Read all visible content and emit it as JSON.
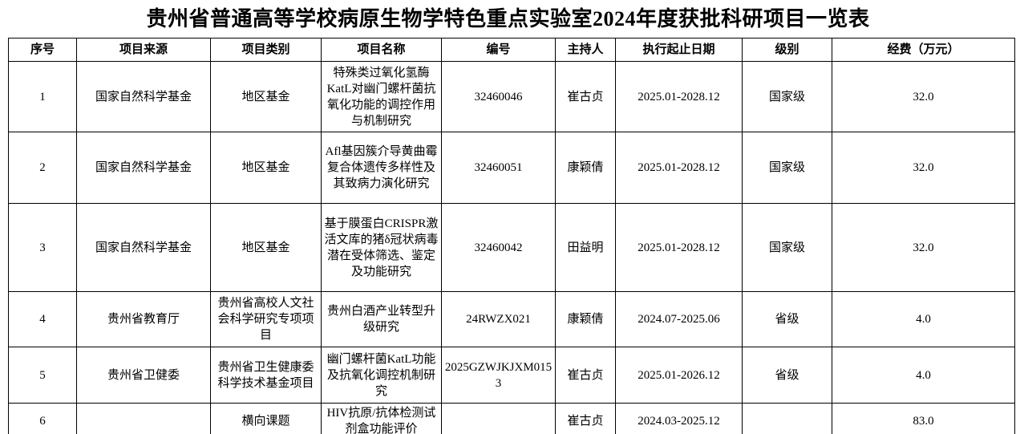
{
  "page": {
    "title": "贵州省普通高等学校病原生物学特色重点实验室2024年度获批科研项目一览表"
  },
  "table": {
    "headers": [
      "序号",
      "项目来源",
      "项目类别",
      "项目名称",
      "编号",
      "主持人",
      "执行起止日期",
      "级别",
      "经费（万元）"
    ],
    "rows": [
      {
        "no": "1",
        "source": "国家自然科学基金",
        "category": "地区基金",
        "name": "特殊类过氧化氢酶KatL对幽门螺杆菌抗氧化功能的调控作用与机制研究",
        "code": "32460046",
        "pi": "崔古贞",
        "period": "2025.01-2028.12",
        "level": "国家级",
        "funding": "32.0"
      },
      {
        "no": "2",
        "source": "国家自然科学基金",
        "category": "地区基金",
        "name": "Afl基因簇介导黄曲霉复合体遗传多样性及其致病力演化研究",
        "code": "32460051",
        "pi": "康颖倩",
        "period": "2025.01-2028.12",
        "level": "国家级",
        "funding": "32.0"
      },
      {
        "no": "3",
        "source": "国家自然科学基金",
        "category": "地区基金",
        "name": "基于膜蛋白CRISPR激活文库的猪δ冠状病毒潜在受体筛选、鉴定及功能研究",
        "code": "32460042",
        "pi": "田益明",
        "period": "2025.01-2028.12",
        "level": "国家级",
        "funding": "32.0"
      },
      {
        "no": "4",
        "source": "贵州省教育厅",
        "category": "贵州省高校人文社会科学研究专项项目",
        "name": "贵州白酒产业转型升级研究",
        "code": "24RWZX021",
        "pi": "康颖倩",
        "period": "2024.07-2025.06",
        "level": "省级",
        "funding": "4.0"
      },
      {
        "no": "5",
        "source": "贵州省卫健委",
        "category": "贵州省卫生健康委科学技术基金项目",
        "name": "幽门螺杆菌KatL功能及抗氧化调控机制研究",
        "code": "2025GZWJKJXM0153",
        "pi": "崔古贞",
        "period": "2025.01-2026.12",
        "level": "省级",
        "funding": "4.0"
      },
      {
        "no": "6",
        "source": "",
        "category": "横向课题",
        "name": "HIV抗原/抗体检测试剂盒功能评价",
        "code": "",
        "pi": "崔古贞",
        "period": "2024.03-2025.12",
        "level": "",
        "funding": "83.0"
      }
    ]
  }
}
